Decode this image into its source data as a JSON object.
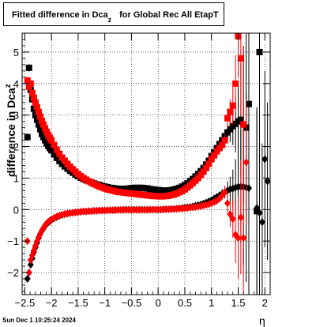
{
  "title": {
    "main": "Fitted difference in Dca",
    "sub": "z",
    "rest": "for Global Rec All EtapT"
  },
  "ylabel": {
    "main": "difference in Dca",
    "sub": "z"
  },
  "xlabel": "η",
  "footer": "Sun Dec  1 10:25:24 2024",
  "chart_data": {
    "type": "scatter",
    "xlim": [
      -2.55,
      2.1
    ],
    "ylim": [
      -2.7,
      5.6
    ],
    "grid": true,
    "x_ticks": [
      -2.5,
      -2,
      -1.5,
      -1,
      -0.5,
      0,
      0.5,
      1,
      1.5,
      2
    ],
    "x_tick_labels": [
      "−2.5",
      "−2",
      "−1.5",
      "−1",
      "−0.5",
      "0",
      "0.5",
      "1",
      "1.5",
      "2"
    ],
    "y_ticks": [
      -2,
      -1,
      0,
      1,
      2,
      3,
      4,
      5
    ],
    "y_tick_labels": [
      "−2",
      "−1",
      "0",
      "1",
      "2",
      "3",
      "4",
      "5"
    ],
    "series": [
      {
        "marker": "square",
        "color": "#000000",
        "x": [
          -2.45,
          -2.42,
          -2.39,
          -2.36,
          -2.33,
          -2.3,
          -2.27,
          -2.24,
          -2.21,
          -2.18,
          -2.15,
          -2.12,
          -2.09,
          -2.06,
          -2.03,
          -2.0,
          -1.95,
          -1.9,
          -1.85,
          -1.8,
          -1.75,
          -1.7,
          -1.65,
          -1.6,
          -1.55,
          -1.5,
          -1.45,
          -1.4,
          -1.35,
          -1.3,
          -1.25,
          -1.2,
          -1.15,
          -1.1,
          -1.05,
          -1.0,
          -0.95,
          -0.9,
          -0.85,
          -0.8,
          -0.75,
          -0.7,
          -0.65,
          -0.6,
          -0.55,
          -0.5,
          -0.45,
          -0.4,
          -0.35,
          -0.3,
          -0.25,
          -0.2,
          -0.15,
          -0.1,
          -0.05,
          0.0,
          0.05,
          0.1,
          0.15,
          0.2,
          0.25,
          0.3,
          0.35,
          0.4,
          0.45,
          0.5,
          0.55,
          0.6,
          0.65,
          0.7,
          0.75,
          0.8,
          0.85,
          0.9,
          0.95,
          1.0,
          1.05,
          1.1,
          1.15,
          1.2,
          1.25,
          1.3,
          1.35,
          1.4,
          1.45,
          1.5,
          1.55,
          1.6,
          1.65,
          1.7,
          1.85,
          1.9
        ],
        "y": [
          2.3,
          4.5,
          3.8,
          3.5,
          3.2,
          3.0,
          2.85,
          2.7,
          2.55,
          2.4,
          2.3,
          2.2,
          2.1,
          2.02,
          1.95,
          1.88,
          1.75,
          1.64,
          1.54,
          1.45,
          1.37,
          1.3,
          1.23,
          1.17,
          1.11,
          1.06,
          1.01,
          0.97,
          0.93,
          0.9,
          0.86,
          0.83,
          0.8,
          0.78,
          0.75,
          0.73,
          0.71,
          0.69,
          0.68,
          0.67,
          0.66,
          0.66,
          0.66,
          0.66,
          0.67,
          0.68,
          0.69,
          0.69,
          0.69,
          0.69,
          0.68,
          0.67,
          0.65,
          0.64,
          0.63,
          0.62,
          0.61,
          0.6,
          0.6,
          0.61,
          0.62,
          0.64,
          0.66,
          0.69,
          0.73,
          0.78,
          0.83,
          0.9,
          0.97,
          1.05,
          1.13,
          1.22,
          1.32,
          1.43,
          1.55,
          1.7,
          1.82,
          1.95,
          2.08,
          2.2,
          2.33,
          2.45,
          2.55,
          2.65,
          2.72,
          2.8,
          2.85,
          2.7,
          2.6,
          3.35,
          -0.05,
          5.0
        ],
        "err": [
          0.12,
          0.12,
          0.1,
          0.08,
          0.07,
          0.06,
          0.05,
          0.05,
          0.04,
          0.04,
          0.04,
          0.03,
          0.03,
          0.03,
          0.03,
          0.03,
          0.03,
          0.02,
          0.02,
          0.02,
          0.02,
          0.02,
          0.02,
          0.02,
          0.02,
          0.02,
          0.02,
          0.02,
          0.02,
          0.02,
          0.02,
          0.02,
          0.02,
          0.02,
          0.02,
          0.02,
          0.02,
          0.02,
          0.02,
          0.02,
          0.02,
          0.02,
          0.02,
          0.02,
          0.02,
          0.02,
          0.02,
          0.02,
          0.02,
          0.02,
          0.02,
          0.02,
          0.02,
          0.02,
          0.02,
          0.02,
          0.02,
          0.02,
          0.02,
          0.02,
          0.02,
          0.02,
          0.02,
          0.02,
          0.02,
          0.02,
          0.02,
          0.02,
          0.03,
          0.03,
          0.03,
          0.03,
          0.04,
          0.04,
          0.05,
          0.06,
          0.08,
          0.1,
          0.12,
          0.15,
          0.2,
          0.3,
          0.4,
          0.6,
          0.9,
          1.3,
          1.8,
          2.5,
          3.0,
          3.5,
          3.2,
          3.0
        ]
      },
      {
        "marker": "diamond",
        "color": "#000000",
        "x": [
          -2.45,
          -2.42,
          -2.39,
          -2.36,
          -2.33,
          -2.3,
          -2.27,
          -2.24,
          -2.21,
          -2.18,
          -2.15,
          -2.12,
          -2.09,
          -2.06,
          -2.03,
          -2.0,
          -1.95,
          -1.9,
          -1.85,
          -1.8,
          -1.75,
          -1.7,
          -1.65,
          -1.6,
          -1.55,
          -1.5,
          -1.45,
          -1.4,
          -1.35,
          -1.3,
          -1.25,
          -1.2,
          -1.15,
          -1.1,
          -1.05,
          -1.0,
          -0.95,
          -0.9,
          -0.85,
          -0.8,
          -0.75,
          -0.7,
          -0.65,
          -0.6,
          -0.55,
          -0.5,
          -0.45,
          -0.4,
          -0.35,
          -0.3,
          -0.25,
          -0.2,
          -0.15,
          -0.1,
          -0.05,
          0.0,
          0.05,
          0.1,
          0.15,
          0.2,
          0.25,
          0.3,
          0.35,
          0.4,
          0.45,
          0.5,
          0.55,
          0.6,
          0.65,
          0.7,
          0.75,
          0.8,
          0.85,
          0.9,
          0.95,
          1.0,
          1.05,
          1.1,
          1.15,
          1.2,
          1.25,
          1.3,
          1.35,
          1.4,
          1.45,
          1.5,
          1.55,
          1.6,
          1.65,
          1.7,
          1.85,
          1.9,
          1.95,
          2.0,
          2.05
        ],
        "y": [
          -2.2,
          -2.0,
          -1.75,
          -1.55,
          -1.35,
          -1.2,
          -1.05,
          -0.9,
          -0.78,
          -0.68,
          -0.6,
          -0.52,
          -0.46,
          -0.41,
          -0.37,
          -0.33,
          -0.28,
          -0.24,
          -0.2,
          -0.17,
          -0.15,
          -0.13,
          -0.11,
          -0.1,
          -0.09,
          -0.08,
          -0.07,
          -0.06,
          -0.06,
          -0.05,
          -0.05,
          -0.04,
          -0.04,
          -0.03,
          -0.03,
          -0.03,
          -0.02,
          -0.02,
          -0.02,
          -0.01,
          -0.01,
          -0.01,
          0.0,
          0.0,
          0.0,
          0.0,
          0.0,
          0.0,
          0.0,
          0.0,
          0.0,
          0.0,
          0.0,
          0.0,
          0.0,
          0.0,
          0.0,
          0.01,
          0.01,
          0.01,
          0.02,
          0.02,
          0.03,
          0.04,
          0.05,
          0.06,
          0.07,
          0.08,
          0.1,
          0.12,
          0.14,
          0.16,
          0.19,
          0.22,
          0.26,
          0.3,
          0.35,
          0.4,
          0.45,
          0.5,
          0.55,
          0.6,
          0.64,
          0.67,
          0.7,
          0.72,
          0.73,
          0.72,
          0.7,
          0.68,
          0.05,
          -0.1,
          -0.4,
          1.6,
          0.9
        ],
        "err": [
          0.1,
          0.1,
          0.08,
          0.07,
          0.06,
          0.05,
          0.05,
          0.04,
          0.04,
          0.03,
          0.03,
          0.03,
          0.03,
          0.03,
          0.02,
          0.02,
          0.02,
          0.02,
          0.02,
          0.02,
          0.02,
          0.02,
          0.02,
          0.02,
          0.02,
          0.02,
          0.02,
          0.02,
          0.02,
          0.02,
          0.02,
          0.02,
          0.02,
          0.02,
          0.02,
          0.02,
          0.02,
          0.02,
          0.02,
          0.02,
          0.02,
          0.02,
          0.02,
          0.02,
          0.02,
          0.02,
          0.02,
          0.02,
          0.02,
          0.02,
          0.02,
          0.02,
          0.02,
          0.02,
          0.02,
          0.02,
          0.02,
          0.02,
          0.02,
          0.02,
          0.02,
          0.02,
          0.02,
          0.02,
          0.02,
          0.02,
          0.02,
          0.02,
          0.03,
          0.03,
          0.03,
          0.03,
          0.04,
          0.04,
          0.05,
          0.06,
          0.08,
          0.1,
          0.12,
          0.15,
          0.2,
          0.3,
          0.4,
          0.6,
          0.9,
          1.3,
          1.8,
          2.5,
          3.0,
          3.5,
          3.2,
          3.0,
          2.5,
          2.8,
          2.5
        ]
      },
      {
        "marker": "square",
        "color": "#ff0000",
        "x": [
          -2.45,
          -2.42,
          -2.39,
          -2.36,
          -2.33,
          -2.3,
          -2.27,
          -2.24,
          -2.21,
          -2.18,
          -2.15,
          -2.12,
          -2.09,
          -2.06,
          -2.03,
          -2.0,
          -1.95,
          -1.9,
          -1.85,
          -1.8,
          -1.75,
          -1.7,
          -1.65,
          -1.6,
          -1.55,
          -1.5,
          -1.45,
          -1.4,
          -1.35,
          -1.3,
          -1.25,
          -1.2,
          -1.15,
          -1.1,
          -1.05,
          -1.0,
          -0.95,
          -0.9,
          -0.85,
          -0.8,
          -0.75,
          -0.7,
          -0.65,
          -0.6,
          -0.55,
          -0.5,
          -0.45,
          -0.4,
          -0.35,
          -0.3,
          -0.25,
          -0.2,
          -0.15,
          -0.1,
          -0.05,
          0.0,
          0.05,
          0.1,
          0.15,
          0.2,
          0.25,
          0.3,
          0.35,
          0.4,
          0.45,
          0.5,
          0.55,
          0.6,
          0.65,
          0.7,
          0.75,
          0.8,
          0.85,
          0.9,
          0.95,
          1.0,
          1.05,
          1.1,
          1.15,
          1.2,
          1.25,
          1.3,
          1.35,
          1.4,
          1.45,
          1.5,
          1.55,
          1.6
        ],
        "y": [
          4.1,
          3.9,
          4.0,
          3.7,
          3.55,
          3.4,
          3.25,
          3.1,
          2.95,
          2.82,
          2.7,
          2.58,
          2.47,
          2.37,
          2.28,
          2.2,
          2.05,
          1.9,
          1.77,
          1.65,
          1.55,
          1.45,
          1.36,
          1.28,
          1.2,
          1.13,
          1.06,
          1.0,
          0.95,
          0.9,
          0.85,
          0.81,
          0.77,
          0.73,
          0.7,
          0.67,
          0.64,
          0.62,
          0.6,
          0.58,
          0.56,
          0.55,
          0.54,
          0.53,
          0.52,
          0.51,
          0.5,
          0.49,
          0.48,
          0.47,
          0.46,
          0.45,
          0.44,
          0.43,
          0.43,
          0.42,
          0.42,
          0.42,
          0.43,
          0.44,
          0.46,
          0.48,
          0.51,
          0.55,
          0.59,
          0.64,
          0.7,
          0.77,
          0.84,
          0.92,
          1.0,
          1.1,
          1.2,
          1.32,
          1.45,
          1.6,
          1.72,
          1.85,
          1.95,
          2.05,
          2.2,
          2.9,
          3.1,
          3.3,
          4.0,
          5.5,
          4.8,
          2.7
        ],
        "err": [
          0.12,
          0.12,
          0.1,
          0.08,
          0.07,
          0.06,
          0.05,
          0.05,
          0.04,
          0.04,
          0.04,
          0.03,
          0.03,
          0.03,
          0.03,
          0.03,
          0.03,
          0.02,
          0.02,
          0.02,
          0.02,
          0.02,
          0.02,
          0.02,
          0.02,
          0.02,
          0.02,
          0.02,
          0.02,
          0.02,
          0.02,
          0.02,
          0.02,
          0.02,
          0.02,
          0.02,
          0.02,
          0.02,
          0.02,
          0.02,
          0.02,
          0.02,
          0.02,
          0.02,
          0.02,
          0.02,
          0.02,
          0.02,
          0.02,
          0.02,
          0.02,
          0.02,
          0.02,
          0.02,
          0.02,
          0.02,
          0.02,
          0.02,
          0.02,
          0.02,
          0.02,
          0.02,
          0.02,
          0.02,
          0.02,
          0.02,
          0.02,
          0.02,
          0.03,
          0.03,
          0.03,
          0.03,
          0.04,
          0.04,
          0.05,
          0.06,
          0.08,
          0.1,
          0.12,
          0.15,
          0.2,
          0.3,
          0.4,
          0.6,
          0.9,
          1.3,
          1.8,
          2.5
        ]
      },
      {
        "marker": "diamond",
        "color": "#ff0000",
        "x": [
          -2.45,
          -2.42,
          -2.39,
          -2.36,
          -2.33,
          -2.3,
          -2.27,
          -2.24,
          -2.21,
          -2.18,
          -2.15,
          -2.12,
          -2.09,
          -2.06,
          -2.03,
          -2.0,
          -1.95,
          -1.9,
          -1.85,
          -1.8,
          -1.75,
          -1.7,
          -1.65,
          -1.6,
          -1.55,
          -1.5,
          -1.45,
          -1.4,
          -1.35,
          -1.3,
          -1.25,
          -1.2,
          -1.15,
          -1.1,
          -1.05,
          -1.0,
          -0.95,
          -0.9,
          -0.85,
          -0.8,
          -0.75,
          -0.7,
          -0.65,
          -0.6,
          -0.55,
          -0.5,
          -0.45,
          -0.4,
          -0.35,
          -0.3,
          -0.25,
          -0.2,
          -0.15,
          -0.1,
          -0.05,
          0.0,
          0.05,
          0.1,
          0.15,
          0.2,
          0.25,
          0.3,
          0.35,
          0.4,
          0.45,
          0.5,
          0.55,
          0.6,
          0.65,
          0.7,
          0.75,
          0.8,
          0.85,
          0.9,
          0.95,
          1.0,
          1.05,
          1.1,
          1.15,
          1.2,
          1.25,
          1.3,
          1.35,
          1.4,
          1.45,
          1.5,
          1.55,
          1.6,
          1.65
        ],
        "y": [
          -1.0,
          -2.0,
          -1.6,
          -1.45,
          -1.3,
          -1.15,
          -1.0,
          -0.88,
          -0.77,
          -0.67,
          -0.58,
          -0.5,
          -0.44,
          -0.39,
          -0.35,
          -0.31,
          -0.26,
          -0.22,
          -0.19,
          -0.16,
          -0.14,
          -0.12,
          -0.11,
          -0.1,
          -0.09,
          -0.08,
          -0.07,
          -0.06,
          -0.06,
          -0.05,
          -0.05,
          -0.04,
          -0.04,
          -0.03,
          -0.03,
          -0.03,
          -0.02,
          -0.02,
          -0.02,
          -0.02,
          -0.01,
          -0.01,
          -0.01,
          -0.01,
          -0.01,
          -0.01,
          -0.01,
          -0.01,
          -0.01,
          -0.01,
          -0.01,
          -0.01,
          0.0,
          0.0,
          0.0,
          0.0,
          0.0,
          0.0,
          0.01,
          0.01,
          0.01,
          0.02,
          0.02,
          0.03,
          0.03,
          0.04,
          0.05,
          0.06,
          0.07,
          0.08,
          0.09,
          0.11,
          0.13,
          0.15,
          0.17,
          0.2,
          0.24,
          0.28,
          0.35,
          0.45,
          0.55,
          0.2,
          -0.15,
          -0.3,
          -0.8,
          -0.9,
          -0.25,
          -0.9,
          1.5
        ],
        "err": [
          0.1,
          0.1,
          0.08,
          0.07,
          0.06,
          0.05,
          0.05,
          0.04,
          0.04,
          0.03,
          0.03,
          0.03,
          0.03,
          0.03,
          0.02,
          0.02,
          0.02,
          0.02,
          0.02,
          0.02,
          0.02,
          0.02,
          0.02,
          0.02,
          0.02,
          0.02,
          0.02,
          0.02,
          0.02,
          0.02,
          0.02,
          0.02,
          0.02,
          0.02,
          0.02,
          0.02,
          0.02,
          0.02,
          0.02,
          0.02,
          0.02,
          0.02,
          0.02,
          0.02,
          0.02,
          0.02,
          0.02,
          0.02,
          0.02,
          0.02,
          0.02,
          0.02,
          0.02,
          0.02,
          0.02,
          0.02,
          0.02,
          0.02,
          0.02,
          0.02,
          0.02,
          0.02,
          0.02,
          0.02,
          0.02,
          0.02,
          0.02,
          0.02,
          0.03,
          0.03,
          0.03,
          0.03,
          0.04,
          0.04,
          0.05,
          0.06,
          0.08,
          0.1,
          0.12,
          0.15,
          0.2,
          0.3,
          0.4,
          0.6,
          0.9,
          1.3,
          1.8,
          2.5,
          2.0
        ]
      }
    ]
  }
}
